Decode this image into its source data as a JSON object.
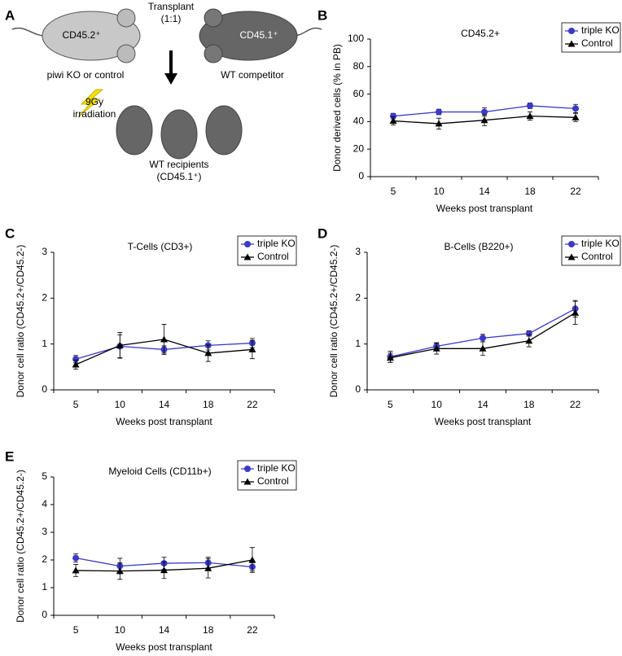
{
  "panel_labels": [
    "A",
    "B",
    "C",
    "D",
    "E"
  ],
  "diagram": {
    "transplant": "Transplant",
    "ratio": "(1:1)",
    "donor_marker": "CD45.2⁺",
    "competitor_marker": "CD45.1⁺",
    "donor": "piwi KO or control",
    "competitor": "WT competitor",
    "dose": "9Gy",
    "treatment": "irradiation",
    "recipients": "WT recipients",
    "recipient_marker": "(CD45.1⁺)"
  },
  "chart_data": [
    {
      "type": "line",
      "title": "CD45.2+",
      "x_label": "Weeks post transplant",
      "y_label": "Donor derived cells (% in PB)",
      "categories": [
        "5",
        "10",
        "14",
        "18",
        "22"
      ],
      "ylim": [
        0,
        100
      ],
      "yticks": [
        0,
        20,
        40,
        60,
        80,
        100
      ],
      "legend": "upper right",
      "series": [
        {
          "name": "triple KO",
          "color": "#3a3ac8",
          "marker": "circle",
          "values": [
            44,
            47,
            47,
            51.5,
            49.5
          ],
          "errors": [
            2,
            2,
            3,
            2,
            3
          ]
        },
        {
          "name": "Control",
          "color": "#000000",
          "marker": "triangle",
          "values": [
            40.5,
            38.5,
            41,
            44,
            43
          ],
          "errors": [
            3,
            4,
            4,
            3,
            3
          ]
        }
      ]
    },
    {
      "type": "line",
      "title": "T-Cells (CD3+)",
      "x_label": "Weeks post transplant",
      "y_label": "Donor cell ratio (CD45.2+/CD45.2-)",
      "categories": [
        "5",
        "10",
        "14",
        "18",
        "22"
      ],
      "ylim": [
        0,
        3
      ],
      "yticks": [
        0,
        1,
        2,
        3
      ],
      "legend": "upper right",
      "series": [
        {
          "name": "triple KO",
          "color": "#3a3ac8",
          "marker": "circle",
          "values": [
            0.67,
            0.95,
            0.88,
            0.97,
            1.02
          ],
          "errors": [
            0.08,
            0.25,
            0.08,
            0.1,
            0.1
          ]
        },
        {
          "name": "Control",
          "color": "#000000",
          "marker": "triangle",
          "values": [
            0.55,
            0.97,
            1.1,
            0.8,
            0.88
          ],
          "errors": [
            0.1,
            0.28,
            0.33,
            0.18,
            0.2
          ]
        }
      ]
    },
    {
      "type": "line",
      "title": "B-Cells (B220+)",
      "x_label": "Weeks post transplant",
      "y_label": "Donor cell ratio (CD45.2+/CD45.2-)",
      "categories": [
        "5",
        "10",
        "14",
        "18",
        "22"
      ],
      "ylim": [
        0,
        3
      ],
      "yticks": [
        0,
        1,
        2,
        3
      ],
      "legend": "upper right",
      "series": [
        {
          "name": "triple KO",
          "color": "#3a3ac8",
          "marker": "circle",
          "values": [
            0.72,
            0.95,
            1.13,
            1.23,
            1.77
          ],
          "errors": [
            0.12,
            0.08,
            0.08,
            0.06,
            0.18
          ]
        },
        {
          "name": "Control",
          "color": "#000000",
          "marker": "triangle",
          "values": [
            0.7,
            0.9,
            0.9,
            1.07,
            1.68
          ],
          "errors": [
            0.1,
            0.12,
            0.15,
            0.13,
            0.25
          ]
        }
      ]
    },
    {
      "type": "line",
      "title": "Myeloid Cells (CD11b+)",
      "x_label": "Weeks post transplant",
      "y_label": "Donor cell ratio (CD45.2+/CD45.2-)",
      "categories": [
        "5",
        "10",
        "14",
        "18",
        "22"
      ],
      "ylim": [
        0,
        5
      ],
      "yticks": [
        0,
        1,
        2,
        3,
        4,
        5
      ],
      "legend": "upper right",
      "series": [
        {
          "name": "triple KO",
          "color": "#3a3ac8",
          "marker": "circle",
          "values": [
            2.07,
            1.78,
            1.88,
            1.9,
            1.75
          ],
          "errors": [
            0.15,
            0.28,
            0.22,
            0.2,
            0.15
          ]
        },
        {
          "name": "Control",
          "color": "#000000",
          "marker": "triangle",
          "values": [
            1.62,
            1.6,
            1.63,
            1.7,
            2.0
          ],
          "errors": [
            0.22,
            0.3,
            0.3,
            0.35,
            0.45
          ]
        }
      ]
    }
  ]
}
